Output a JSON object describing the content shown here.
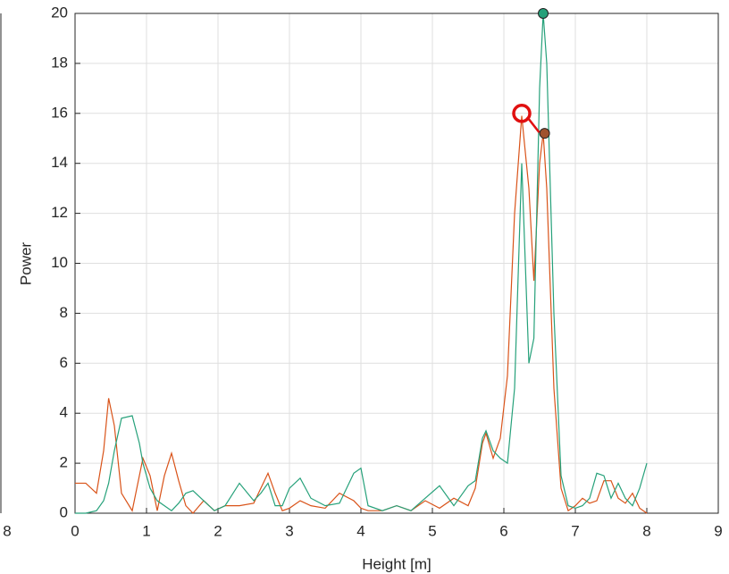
{
  "chart_data": {
    "type": "line",
    "xlabel": "Height [m]",
    "ylabel": "Power",
    "xlim": [
      0,
      9
    ],
    "xticks": [
      0,
      1,
      2,
      3,
      4,
      5,
      6,
      7,
      8,
      9
    ],
    "ylim": [
      0,
      20
    ],
    "yticks": [
      0,
      2,
      4,
      6,
      8,
      10,
      12,
      14,
      16,
      18,
      20
    ],
    "grid": true,
    "x": [
      0,
      0.15,
      0.3,
      0.4,
      0.47,
      0.55,
      0.65,
      0.8,
      0.9,
      0.95,
      1.05,
      1.15,
      1.25,
      1.35,
      1.45,
      1.55,
      1.65,
      1.8,
      1.95,
      2.1,
      2.3,
      2.5,
      2.6,
      2.7,
      2.8,
      2.9,
      3.0,
      3.15,
      3.3,
      3.5,
      3.7,
      3.9,
      4.0,
      4.1,
      4.3,
      4.5,
      4.7,
      4.9,
      5.1,
      5.3,
      5.5,
      5.6,
      5.7,
      5.75,
      5.85,
      5.95,
      6.05,
      6.15,
      6.25,
      6.35,
      6.42,
      6.5,
      6.55,
      6.6,
      6.7,
      6.8,
      6.9,
      7.0,
      7.1,
      7.2,
      7.3,
      7.4,
      7.5,
      7.6,
      7.7,
      7.8,
      7.9,
      8.0
    ],
    "series": [
      {
        "color": "#d95319",
        "values": [
          1.2,
          1.2,
          0.8,
          2.5,
          4.6,
          3.5,
          0.8,
          0.1,
          1.5,
          2.2,
          1.5,
          0.1,
          1.5,
          2.4,
          1.3,
          0.3,
          0,
          0.5,
          0.1,
          0.3,
          0.3,
          0.4,
          1.0,
          1.6,
          0.8,
          0.1,
          0.2,
          0.5,
          0.3,
          0.2,
          0.8,
          0.5,
          0.2,
          0.1,
          0.1,
          0.3,
          0.1,
          0.5,
          0.2,
          0.6,
          0.3,
          1.0,
          2.8,
          3.2,
          2.2,
          3.0,
          5.5,
          12,
          15.9,
          13,
          9.3,
          14,
          15.2,
          13,
          5,
          1,
          0.1,
          0.3,
          0.6,
          0.4,
          0.5,
          1.3,
          1.3,
          0.6,
          0.4,
          0.8,
          0.2,
          0
        ]
      },
      {
        "color": "#26a17a",
        "values": [
          0,
          0,
          0.1,
          0.5,
          1.2,
          2.5,
          3.8,
          3.9,
          2.8,
          2.0,
          1.0,
          0.5,
          0.3,
          0.1,
          0.4,
          0.8,
          0.9,
          0.5,
          0.1,
          0.3,
          1.2,
          0.5,
          0.8,
          1.2,
          0.3,
          0.3,
          1.0,
          1.4,
          0.6,
          0.3,
          0.4,
          1.6,
          1.8,
          0.3,
          0.1,
          0.3,
          0.1,
          0.6,
          1.1,
          0.3,
          1.1,
          1.3,
          3.0,
          3.3,
          2.5,
          2.2,
          2.0,
          5,
          14,
          6,
          7,
          17,
          20,
          18,
          8,
          1.5,
          0.3,
          0.2,
          0.3,
          0.6,
          1.6,
          1.5,
          0.6,
          1.2,
          0.6,
          0.3,
          1.0,
          2.0
        ]
      }
    ],
    "points": [
      {
        "x": 6.55,
        "y": 20,
        "color": "#26a17a"
      },
      {
        "x": 6.57,
        "y": 15.2,
        "color": "#a0522d"
      },
      {
        "x": 6.25,
        "y": 16,
        "color": "#e01010"
      }
    ]
  },
  "left_panel": {
    "xtick": "8"
  }
}
